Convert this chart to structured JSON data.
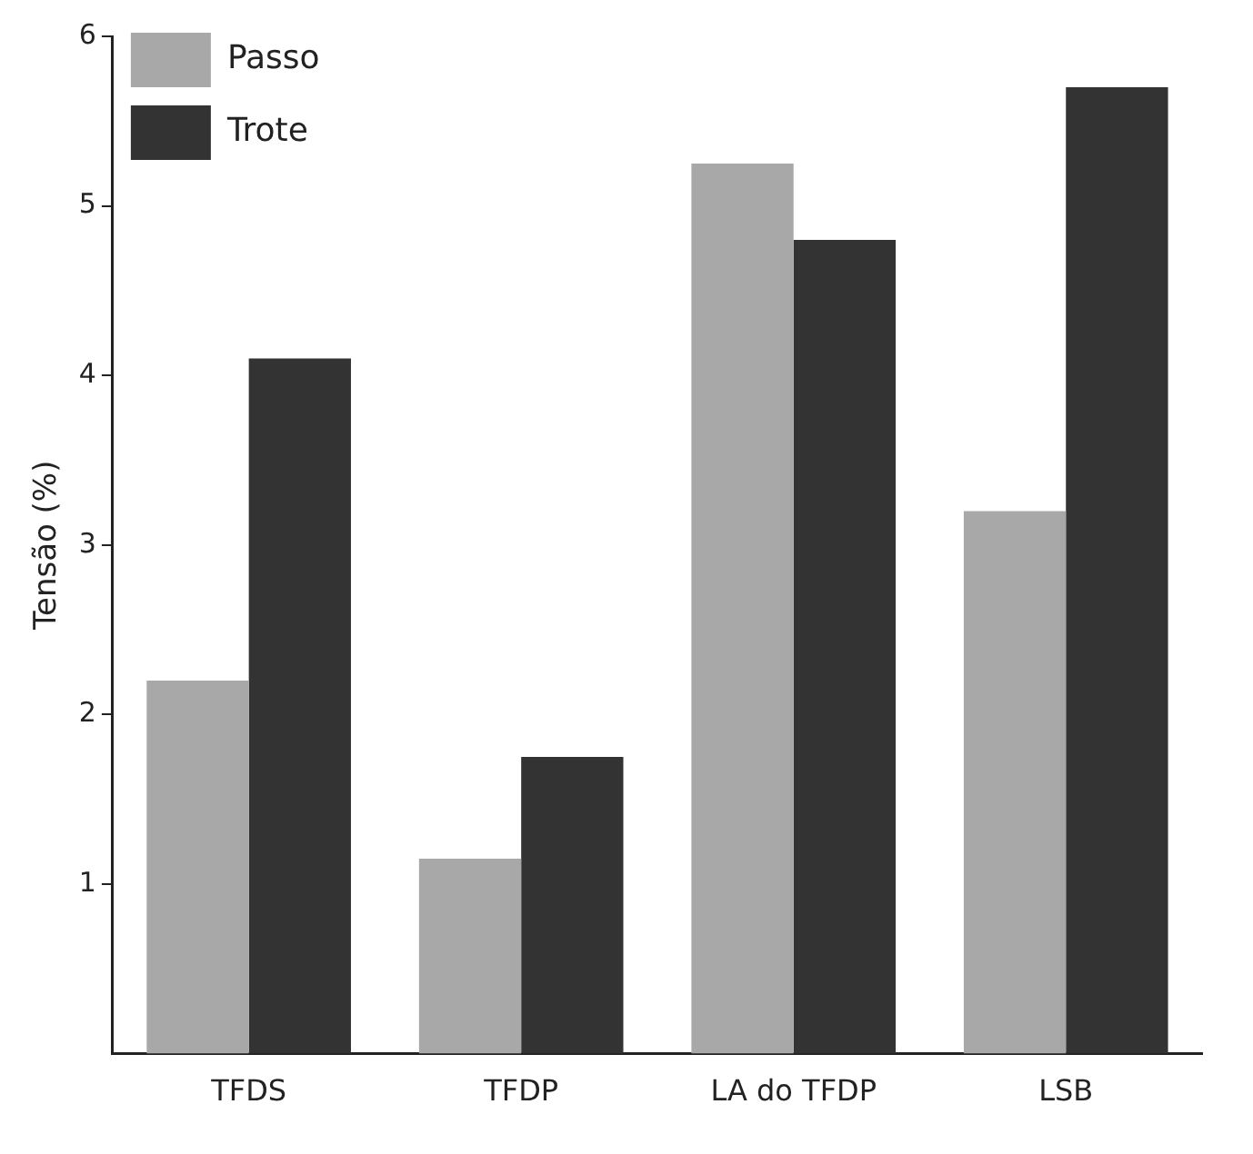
{
  "chart_data": {
    "type": "bar",
    "ylabel": "Tensão (%)",
    "categories": [
      "TFDS",
      "TFDP",
      "LA do TFDP",
      "LSB"
    ],
    "series": [
      {
        "name": "Passo",
        "color": "#a8a8a8",
        "values": [
          2.2,
          1.15,
          5.25,
          3.2
        ]
      },
      {
        "name": "Trote",
        "color": "#333333",
        "values": [
          4.1,
          1.75,
          4.8,
          5.7
        ]
      }
    ],
    "ylim": [
      0,
      6
    ],
    "yticks": [
      1,
      2,
      3,
      4,
      5,
      6
    ],
    "grid": false,
    "legend": "top left"
  }
}
